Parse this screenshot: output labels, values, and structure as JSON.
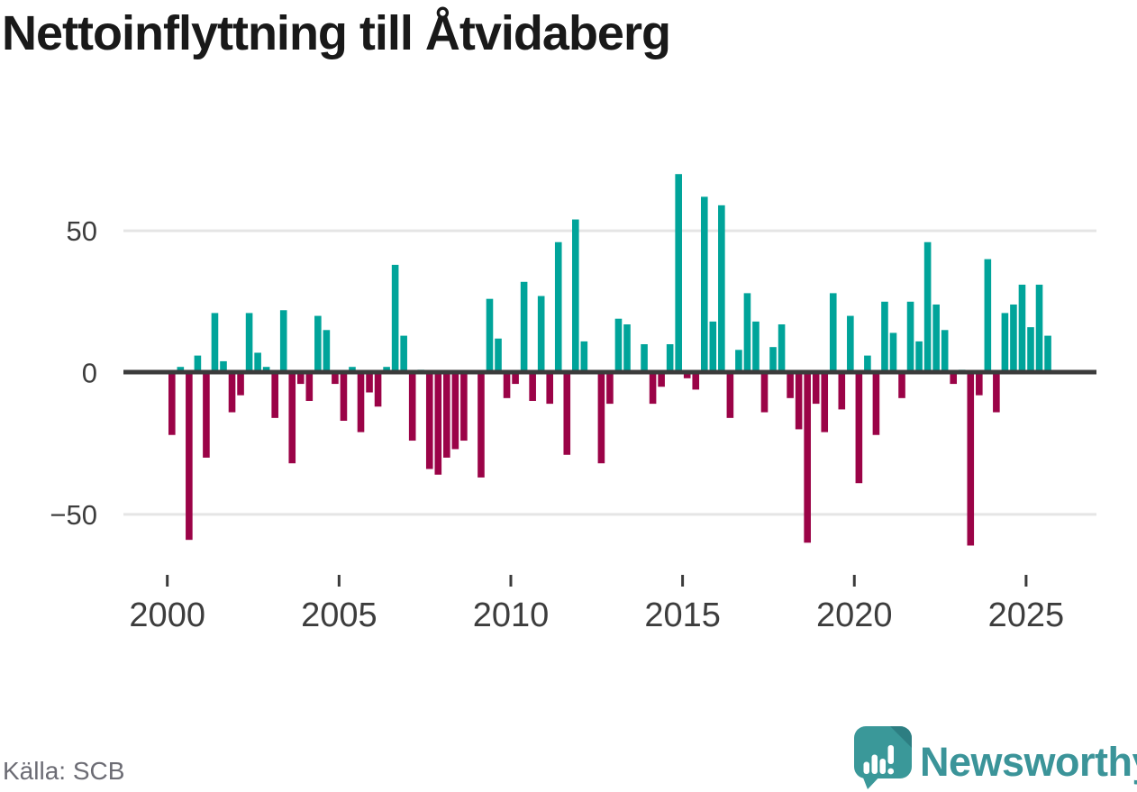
{
  "title": "Nettoinflyttning till Åtvidaberg",
  "source": "Källa: SCB",
  "logo": {
    "text": "Newsworthy",
    "icon": "speech-bubble-bar-chart-exclamation"
  },
  "colors": {
    "positive_bar": "#00a49a",
    "negative_bar": "#9b0347",
    "axis_line": "#3b3b3b",
    "gridline": "#e5e5e5",
    "tick_label": "#3d3d3d",
    "source_text": "#6c6c74",
    "logo_teal": "#3a9899",
    "logo_fold": "#2d7e82",
    "title_text": "#191919"
  },
  "chart_data": {
    "type": "bar",
    "title": "Nettoinflyttning till Åtvidaberg",
    "xlabel": "",
    "ylabel": "",
    "frequency": "quarterly",
    "start": "2000Q1",
    "end": "2025Q3",
    "x_tick_labels": [
      "2000",
      "2005",
      "2010",
      "2015",
      "2020",
      "2025"
    ],
    "y_ticks": [
      {
        "label": "50",
        "value": 50
      },
      {
        "label": "0",
        "value": 0
      },
      {
        "label": "−50",
        "value": -50
      }
    ],
    "ylim": [
      -65,
      75
    ],
    "grid": "horizontal",
    "legend": "none",
    "positive_color_meaning": "net in-migration",
    "negative_color_meaning": "net out-migration",
    "series": [
      {
        "name": "Nettoinflyttning per kvartal",
        "values": [
          -22,
          2,
          -59,
          6,
          -30,
          21,
          4,
          -14,
          -8,
          21,
          7,
          2,
          -16,
          22,
          -32,
          -4,
          -10,
          20,
          15,
          -4,
          -17,
          2,
          -21,
          -7,
          -12,
          2,
          38,
          13,
          -24,
          1,
          -34,
          -36,
          -30,
          -27,
          -24,
          0,
          -37,
          26,
          12,
          -9,
          -4,
          32,
          -10,
          27,
          -11,
          46,
          -29,
          54,
          11,
          0,
          -32,
          -11,
          19,
          17,
          0,
          10,
          -11,
          -5,
          10,
          70,
          -2,
          -6,
          62,
          18,
          59,
          -16,
          8,
          28,
          18,
          -14,
          9,
          17,
          -9,
          -20,
          -60,
          -11,
          -21,
          28,
          -13,
          20,
          -39,
          6,
          -22,
          25,
          14,
          -9,
          25,
          11,
          46,
          24,
          15,
          -4,
          1,
          -61,
          -8,
          40,
          -14,
          21,
          24,
          31,
          16,
          31,
          13
        ]
      }
    ]
  }
}
